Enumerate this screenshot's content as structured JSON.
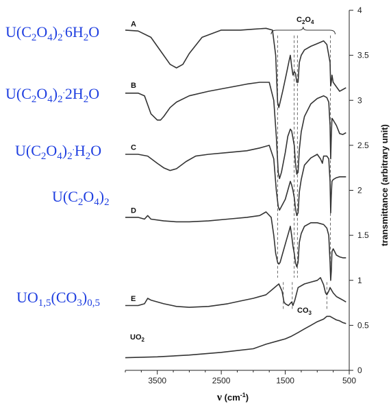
{
  "colors": {
    "formula": "#1f3fe0",
    "curve": "#333333",
    "axis": "#222222"
  },
  "chart_data": {
    "type": "line",
    "xlabel": "ν (cm⁻¹)",
    "ylabel": "transmittance (arbitrary unit)",
    "xlim": [
      4000,
      500
    ],
    "ylim": [
      0,
      4
    ],
    "x_ticks": [
      3500,
      2500,
      1500,
      500
    ],
    "y_ticks": [
      0,
      0.5,
      1,
      1.5,
      2,
      2.5,
      3,
      3.5,
      4
    ],
    "band_labels": {
      "oxalate": "C2O4",
      "carbonate": "CO3"
    },
    "band_positions": {
      "oxalate": [
        1620,
        1360,
        1310,
        795
      ],
      "carbonate": [
        1530,
        1390,
        850
      ]
    },
    "series": [
      {
        "name": "A",
        "formula": "U(C2O4)2·6H2O",
        "x": [
          4000,
          3800,
          3600,
          3450,
          3300,
          3200,
          3100,
          3000,
          2800,
          2500,
          2200,
          2000,
          1800,
          1700,
          1650,
          1620,
          1600,
          1580,
          1540,
          1480,
          1440,
          1420,
          1400,
          1380,
          1360,
          1340,
          1320,
          1300,
          1280,
          1250,
          1200,
          1100,
          1000,
          900,
          850,
          800,
          790,
          780,
          770,
          750,
          700,
          650,
          600,
          550
        ],
        "values": [
          3.78,
          3.77,
          3.7,
          3.55,
          3.4,
          3.36,
          3.4,
          3.52,
          3.7,
          3.78,
          3.78,
          3.79,
          3.8,
          3.78,
          3.5,
          2.98,
          2.92,
          2.98,
          3.1,
          3.3,
          3.44,
          3.5,
          3.38,
          3.28,
          3.32,
          3.3,
          3.2,
          3.2,
          3.42,
          3.5,
          3.56,
          3.6,
          3.63,
          3.66,
          3.62,
          3.42,
          3.16,
          3.2,
          3.28,
          3.2,
          3.15,
          3.1,
          3.12,
          3.14
        ]
      },
      {
        "name": "B",
        "formula": "U(C2O4)2·2H2O",
        "x": [
          4000,
          3800,
          3700,
          3600,
          3500,
          3450,
          3400,
          3300,
          3200,
          3000,
          2700,
          2400,
          2100,
          1900,
          1750,
          1680,
          1640,
          1610,
          1590,
          1560,
          1500,
          1460,
          1420,
          1400,
          1380,
          1360,
          1340,
          1320,
          1300,
          1280,
          1250,
          1200,
          1100,
          1000,
          900,
          850,
          820,
          800,
          790,
          780,
          770,
          750,
          700,
          650,
          600,
          550
        ],
        "values": [
          3.08,
          3.08,
          3.05,
          2.85,
          2.78,
          2.78,
          2.82,
          2.92,
          2.98,
          3.05,
          3.1,
          3.14,
          3.18,
          3.2,
          3.2,
          3.0,
          2.6,
          2.2,
          2.13,
          2.2,
          2.42,
          2.6,
          2.68,
          2.66,
          2.58,
          2.5,
          2.3,
          2.18,
          2.2,
          2.45,
          2.65,
          2.82,
          2.96,
          3.02,
          3.05,
          3.03,
          2.98,
          2.72,
          2.35,
          2.6,
          2.8,
          2.78,
          2.72,
          2.63,
          2.62,
          2.64
        ]
      },
      {
        "name": "C",
        "formula": "U(C2O4)2·H2O",
        "x": [
          4000,
          3800,
          3650,
          3500,
          3400,
          3300,
          3200,
          3050,
          2900,
          2700,
          2400,
          2100,
          1900,
          1750,
          1680,
          1640,
          1610,
          1590,
          1560,
          1500,
          1460,
          1420,
          1400,
          1380,
          1360,
          1340,
          1320,
          1300,
          1280,
          1250,
          1200,
          1100,
          1000,
          950,
          920,
          900,
          850,
          820,
          800,
          790,
          780,
          770,
          750,
          700,
          650,
          600,
          550
        ],
        "values": [
          2.4,
          2.4,
          2.38,
          2.3,
          2.25,
          2.22,
          2.24,
          2.32,
          2.38,
          2.4,
          2.42,
          2.44,
          2.47,
          2.5,
          2.35,
          2.0,
          1.82,
          1.78,
          1.82,
          1.9,
          2.0,
          2.1,
          2.06,
          2.0,
          1.92,
          1.8,
          1.72,
          1.75,
          1.98,
          2.12,
          2.28,
          2.36,
          2.4,
          2.35,
          2.3,
          2.38,
          2.38,
          2.35,
          2.1,
          1.75,
          1.95,
          2.1,
          2.12,
          2.14,
          2.15,
          2.15,
          2.15
        ]
      },
      {
        "name": "D",
        "formula": "U(C2O4)2",
        "x": [
          4000,
          3800,
          3700,
          3650,
          3600,
          3400,
          3200,
          3000,
          2700,
          2400,
          2100,
          1900,
          1800,
          1720,
          1680,
          1650,
          1620,
          1600,
          1580,
          1540,
          1480,
          1440,
          1420,
          1400,
          1380,
          1360,
          1340,
          1320,
          1300,
          1280,
          1250,
          1200,
          1100,
          1000,
          900,
          850,
          820,
          800,
          790,
          780,
          770,
          750,
          700,
          650,
          600,
          550
        ],
        "values": [
          1.7,
          1.7,
          1.68,
          1.72,
          1.68,
          1.66,
          1.65,
          1.65,
          1.66,
          1.68,
          1.7,
          1.72,
          1.76,
          1.7,
          1.5,
          1.3,
          1.2,
          1.18,
          1.2,
          1.3,
          1.45,
          1.55,
          1.6,
          1.5,
          1.38,
          1.3,
          1.2,
          1.15,
          1.2,
          1.42,
          1.52,
          1.6,
          1.64,
          1.64,
          1.62,
          1.58,
          1.5,
          1.2,
          1.0,
          1.1,
          1.32,
          1.35,
          1.28,
          1.26,
          1.25,
          1.25
        ]
      },
      {
        "name": "E",
        "formula": "UO1,5(CO3)0,5",
        "x": [
          4000,
          3800,
          3700,
          3650,
          3600,
          3400,
          3200,
          3000,
          2700,
          2400,
          2200,
          2000,
          1800,
          1700,
          1600,
          1550,
          1520,
          1500,
          1450,
          1400,
          1380,
          1350,
          1300,
          1200,
          1100,
          1000,
          950,
          900,
          870,
          850,
          820,
          800,
          750,
          700,
          650,
          600,
          550
        ],
        "values": [
          0.72,
          0.72,
          0.74,
          0.8,
          0.78,
          0.74,
          0.71,
          0.7,
          0.71,
          0.74,
          0.77,
          0.8,
          0.84,
          0.9,
          0.96,
          0.88,
          0.76,
          0.74,
          0.72,
          0.76,
          0.72,
          0.78,
          0.92,
          0.96,
          0.98,
          1.0,
          1.03,
          0.95,
          0.86,
          0.84,
          0.88,
          0.92,
          0.86,
          0.82,
          0.8,
          0.78,
          0.76
        ]
      },
      {
        "name": "UO2",
        "formula": "",
        "x": [
          4000,
          3500,
          3000,
          2500,
          2000,
          1800,
          1600,
          1500,
          1400,
          1300,
          1200,
          1100,
          1000,
          900,
          850,
          800,
          750,
          700,
          650,
          600,
          550
        ],
        "values": [
          0.14,
          0.15,
          0.17,
          0.2,
          0.24,
          0.29,
          0.33,
          0.35,
          0.38,
          0.42,
          0.46,
          0.5,
          0.54,
          0.57,
          0.6,
          0.6,
          0.58,
          0.56,
          0.55,
          0.53,
          0.52
        ]
      }
    ]
  }
}
